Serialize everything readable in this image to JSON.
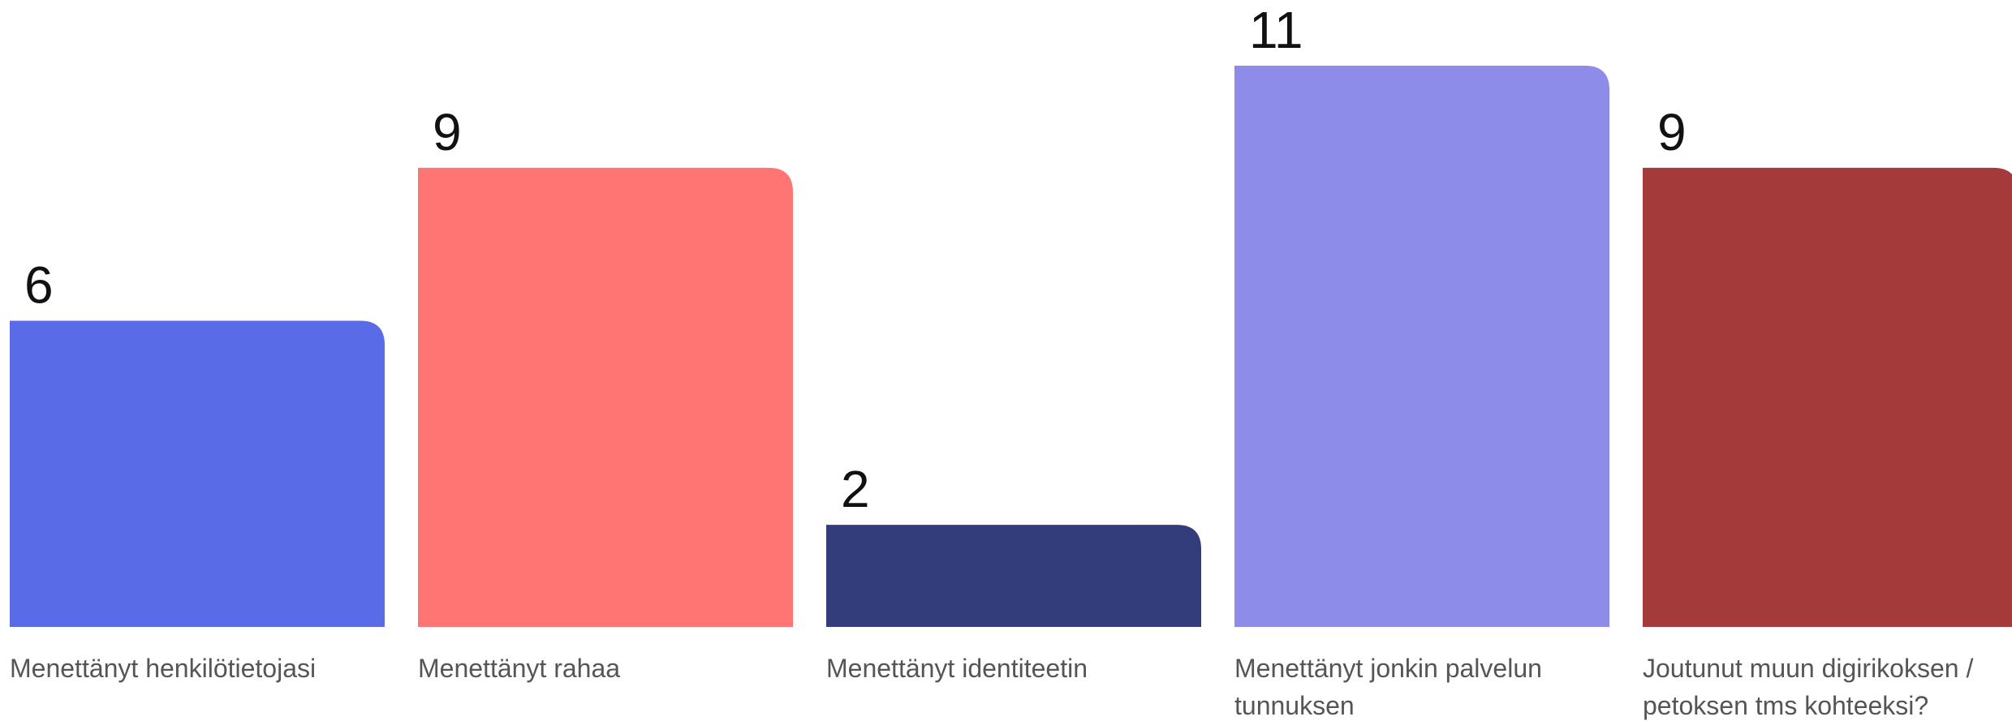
{
  "chart_data": {
    "type": "bar",
    "categories": [
      [
        "Menettänyt henkilötietojasi"
      ],
      [
        "Menettänyt rahaa"
      ],
      [
        "Menettänyt identiteetin"
      ],
      [
        "Menettänyt jonkin palvelun",
        "tunnuksen"
      ],
      [
        "Joutunut muun digirikoksen /",
        "petoksen tms kohteeksi?"
      ]
    ],
    "values": [
      6,
      9,
      2,
      11,
      9
    ],
    "value_labels": [
      "6",
      "9",
      "2",
      "11",
      "9"
    ],
    "colors": [
      "#5a6be8",
      "#ff7574",
      "#343d7c",
      "#8d8de9",
      "#a53a3a"
    ],
    "ylim": [
      0,
      11
    ],
    "grid": false,
    "legend": "none"
  }
}
